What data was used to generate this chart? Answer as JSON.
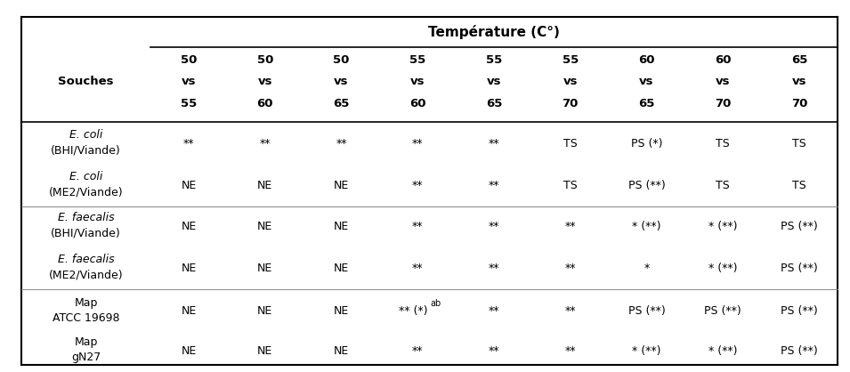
{
  "title": "Température (C°)",
  "col_headers_row1": [
    "50",
    "50",
    "50",
    "55",
    "55",
    "55",
    "60",
    "60",
    "65"
  ],
  "col_headers_row2": [
    "vs",
    "vs",
    "vs",
    "vs",
    "vs",
    "vs",
    "vs",
    "vs",
    "vs"
  ],
  "col_headers_row3": [
    "55",
    "60",
    "65",
    "60",
    "65",
    "70",
    "65",
    "70",
    "70"
  ],
  "row_labels": [
    [
      "E. coli",
      "(BHI/Viande)"
    ],
    [
      "E. coli",
      "(ME2/Viande)"
    ],
    [
      "E. faecalis",
      "(BHI/Viande)"
    ],
    [
      "E. faecalis",
      "(ME2/Viande)"
    ],
    [
      "Map",
      "ATCC 19698"
    ],
    [
      "Map",
      "gN27"
    ]
  ],
  "row_label_italic": [
    [
      true,
      false
    ],
    [
      true,
      false
    ],
    [
      true,
      false
    ],
    [
      true,
      false
    ],
    [
      false,
      false
    ],
    [
      false,
      false
    ]
  ],
  "data": [
    [
      "**",
      "**",
      "**",
      "**",
      "**",
      "TS",
      "PS (*)",
      "TS",
      "TS"
    ],
    [
      "NE",
      "NE",
      "NE",
      "**",
      "**",
      "TS",
      "PS (**)",
      "TS",
      "TS"
    ],
    [
      "NE",
      "NE",
      "NE",
      "**",
      "**",
      "**",
      "* (**)",
      "* (**)",
      "PS (**)"
    ],
    [
      "NE",
      "NE",
      "NE",
      "**",
      "**",
      "**",
      "*",
      "* (**)",
      "PS (**)"
    ],
    [
      "NE",
      "NE",
      "NE",
      "** (*)|ab",
      "**",
      "**",
      "PS (**)",
      "PS (**)",
      "PS (**)"
    ],
    [
      "NE",
      "NE",
      "NE",
      "**",
      "**",
      "**",
      "* (**)",
      "* (**)",
      "PS (**)"
    ]
  ],
  "souches_label": "Souches",
  "background_color": "#ffffff",
  "text_color": "#000000",
  "font_size": 9,
  "header_font_size": 9.5,
  "title_font_size": 11
}
